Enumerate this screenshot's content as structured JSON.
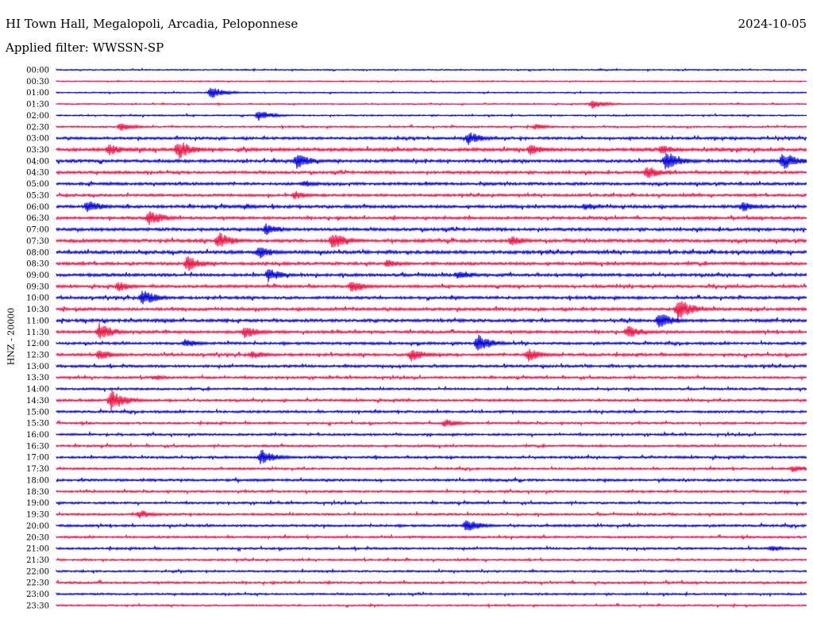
{
  "header": {
    "station": "HI Town Hall, Megalopoli, Arcadia, Peloponnese",
    "date": "2024-10-05",
    "filter_label": "Applied filter: WWSSN-SP"
  },
  "chart_data": {
    "type": "line",
    "chart_kind": "seismic helicorder",
    "ylabel": "HNZ - 20000",
    "row_labels": [
      "00:00",
      "00:30",
      "01:00",
      "01:30",
      "02:00",
      "02:30",
      "03:00",
      "03:30",
      "04:00",
      "04:30",
      "05:00",
      "05:30",
      "06:00",
      "06:30",
      "07:00",
      "07:30",
      "08:00",
      "08:30",
      "09:00",
      "09:30",
      "10:00",
      "10:30",
      "11:00",
      "11:30",
      "12:00",
      "12:30",
      "13:00",
      "13:30",
      "14:00",
      "14:30",
      "15:00",
      "15:30",
      "16:00",
      "16:30",
      "17:00",
      "17:30",
      "18:00",
      "18:30",
      "19:00",
      "19:30",
      "20:00",
      "20:30",
      "21:00",
      "21:30",
      "22:00",
      "22:30",
      "23:00",
      "23:30"
    ],
    "colors": [
      "#0000dd",
      "#ee1144"
    ],
    "noise_level": [
      0.6,
      0.5,
      0.6,
      0.6,
      0.7,
      0.8,
      1.2,
      1.6,
      1.4,
      1.3,
      1.3,
      1.2,
      1.4,
      1.3,
      1.4,
      1.5,
      1.5,
      1.4,
      1.4,
      1.3,
      1.3,
      1.4,
      1.4,
      1.3,
      1.2,
      1.3,
      1.2,
      1.1,
      1.0,
      1.1,
      1.1,
      1.0,
      1.0,
      1.0,
      1.1,
      1.0,
      1.1,
      1.0,
      1.0,
      1.0,
      1.1,
      1.0,
      1.0,
      0.9,
      0.9,
      1.0,
      0.9,
      0.8
    ],
    "events": [
      {
        "row": 2,
        "minute": 6.5,
        "amplitude": 8
      },
      {
        "row": 3,
        "minute": 22.5,
        "amplitude": 6
      },
      {
        "row": 4,
        "minute": 8.5,
        "amplitude": 7
      },
      {
        "row": 5,
        "minute": 2.7,
        "amplitude": 6
      },
      {
        "row": 5,
        "minute": 20.1,
        "amplitude": 4
      },
      {
        "row": 6,
        "minute": 17.3,
        "amplitude": 9
      },
      {
        "row": 7,
        "minute": 2.2,
        "amplitude": 8
      },
      {
        "row": 7,
        "minute": 5.1,
        "amplitude": 14
      },
      {
        "row": 7,
        "minute": 19.9,
        "amplitude": 8
      },
      {
        "row": 7,
        "minute": 25.4,
        "amplitude": 7
      },
      {
        "row": 8,
        "minute": 10.1,
        "amplitude": 10
      },
      {
        "row": 8,
        "minute": 25.6,
        "amplitude": 14
      },
      {
        "row": 8,
        "minute": 30.5,
        "amplitude": 12
      },
      {
        "row": 9,
        "minute": 24.8,
        "amplitude": 9
      },
      {
        "row": 10,
        "minute": 10.4,
        "amplitude": 5
      },
      {
        "row": 11,
        "minute": 10.0,
        "amplitude": 6
      },
      {
        "row": 12,
        "minute": 1.3,
        "amplitude": 9
      },
      {
        "row": 12,
        "minute": 8.0,
        "amplitude": 4
      },
      {
        "row": 12,
        "minute": 22.2,
        "amplitude": 5
      },
      {
        "row": 12,
        "minute": 28.8,
        "amplitude": 7
      },
      {
        "row": 13,
        "minute": 3.9,
        "amplitude": 11
      },
      {
        "row": 14,
        "minute": 8.8,
        "amplitude": 8
      },
      {
        "row": 15,
        "minute": 6.8,
        "amplitude": 12
      },
      {
        "row": 15,
        "minute": 11.6,
        "amplitude": 13
      },
      {
        "row": 15,
        "minute": 19.1,
        "amplitude": 7
      },
      {
        "row": 16,
        "minute": 8.5,
        "amplitude": 9
      },
      {
        "row": 17,
        "minute": 5.5,
        "amplitude": 11
      },
      {
        "row": 17,
        "minute": 13.9,
        "amplitude": 6
      },
      {
        "row": 18,
        "minute": 8.9,
        "amplitude": 9
      },
      {
        "row": 18,
        "minute": 16.9,
        "amplitude": 7
      },
      {
        "row": 19,
        "minute": 2.6,
        "amplitude": 7
      },
      {
        "row": 19,
        "minute": 12.4,
        "amplitude": 9
      },
      {
        "row": 20,
        "minute": 3.6,
        "amplitude": 11
      },
      {
        "row": 21,
        "minute": 26.1,
        "amplitude": 15
      },
      {
        "row": 22,
        "minute": 25.3,
        "amplitude": 11
      },
      {
        "row": 23,
        "minute": 1.8,
        "amplitude": 12
      },
      {
        "row": 23,
        "minute": 7.9,
        "amplitude": 9
      },
      {
        "row": 23,
        "minute": 24.0,
        "amplitude": 9
      },
      {
        "row": 24,
        "minute": 5.4,
        "amplitude": 6
      },
      {
        "row": 24,
        "minute": 17.7,
        "amplitude": 12
      },
      {
        "row": 25,
        "minute": 1.8,
        "amplitude": 7
      },
      {
        "row": 25,
        "minute": 8.2,
        "amplitude": 6
      },
      {
        "row": 25,
        "minute": 14.9,
        "amplitude": 9
      },
      {
        "row": 25,
        "minute": 19.8,
        "amplitude": 9
      },
      {
        "row": 27,
        "minute": 4.1,
        "amplitude": 4
      },
      {
        "row": 29,
        "minute": 2.3,
        "amplitude": 14
      },
      {
        "row": 31,
        "minute": 16.3,
        "amplitude": 6
      },
      {
        "row": 34,
        "minute": 8.6,
        "amplitude": 11
      },
      {
        "row": 35,
        "minute": 30.9,
        "amplitude": 5
      },
      {
        "row": 39,
        "minute": 3.5,
        "amplitude": 6
      },
      {
        "row": 40,
        "minute": 17.2,
        "amplitude": 9
      },
      {
        "row": 42,
        "minute": 30.0,
        "amplitude": 4
      }
    ]
  }
}
